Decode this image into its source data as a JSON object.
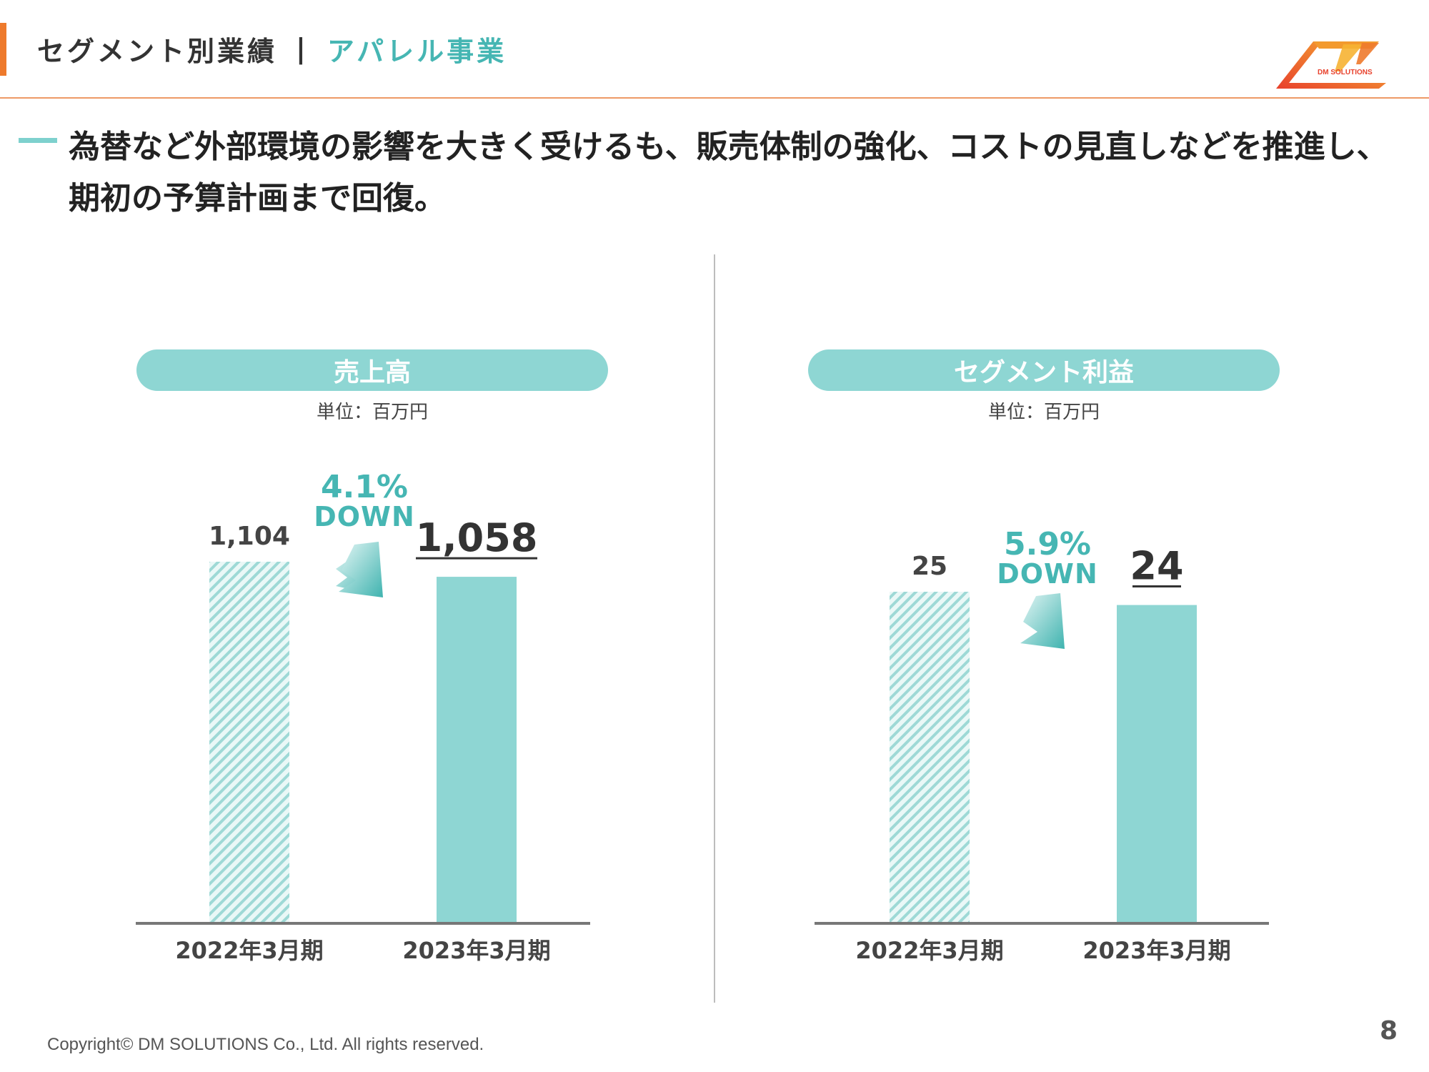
{
  "header": {
    "title_main": "セグメント別業績",
    "separator": "|",
    "title_sub": "アパレル事業"
  },
  "logo": {
    "text": "DM SOLUTIONS",
    "icon": "dm-solutions-logo"
  },
  "lead": {
    "line1": "為替など外部環境の影響を大きく受けるも、販売体制の強化、コストの見直しなどを推進し、",
    "line2": "期初の予算計画まで回復。"
  },
  "colors": {
    "accent": "#EE7A2C",
    "teal": "#8ED6D3",
    "teal_text": "#46B6B3",
    "axis": "#777777"
  },
  "charts": {
    "sales": {
      "pill": "売上高",
      "unit": "単位：百万円",
      "change_pct": "4.1%",
      "change_word": "DOWN"
    },
    "profit": {
      "pill": "セグメント利益",
      "unit": "単位：百万円",
      "change_pct": "5.9%",
      "change_word": "DOWN"
    }
  },
  "chart_data": [
    {
      "type": "bar",
      "title": "売上高",
      "unit": "単位：百万円",
      "categories": [
        "2022年3月期",
        "2023年3月期"
      ],
      "values": [
        1104,
        1058
      ],
      "value_labels": [
        "1,104",
        "1,058"
      ],
      "change": "4.1% DOWN",
      "ylim": [
        0,
        1104
      ]
    },
    {
      "type": "bar",
      "title": "セグメント利益",
      "unit": "単位：百万円",
      "categories": [
        "2022年3月期",
        "2023年3月期"
      ],
      "values": [
        25,
        24
      ],
      "value_labels": [
        "25",
        "24"
      ],
      "change": "5.9% DOWN",
      "ylim": [
        0,
        25
      ]
    }
  ],
  "footer": {
    "copyright": "Copyright© DM SOLUTIONS Co., Ltd. All rights reserved.",
    "page": "8"
  }
}
